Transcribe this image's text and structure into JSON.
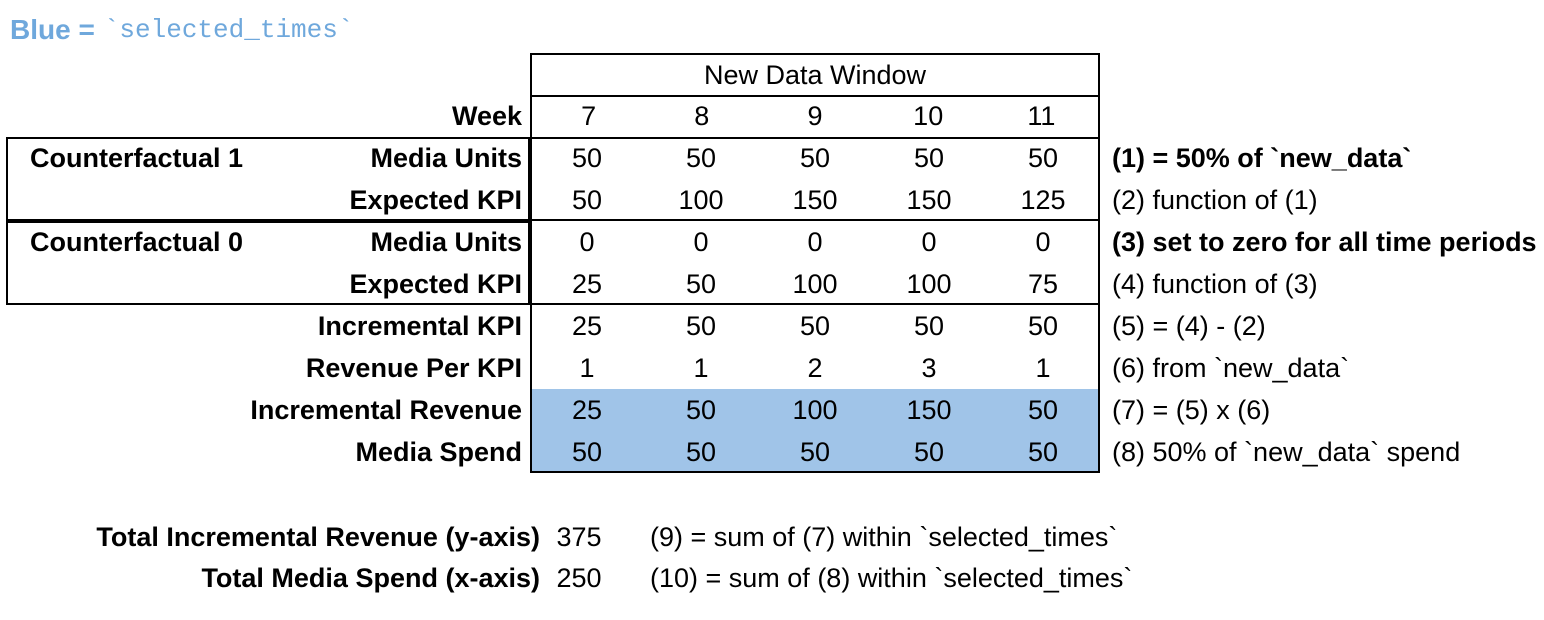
{
  "legend": {
    "label": "Blue =",
    "code": "`selected_times`"
  },
  "table": {
    "window_title": "New Data Window",
    "week_label": "Week",
    "weeks": [
      "7",
      "8",
      "9",
      "10",
      "11"
    ],
    "group1": "Counterfactual 1",
    "group2": "Counterfactual 0",
    "rows": [
      {
        "label": "Media Units",
        "values": [
          "50",
          "50",
          "50",
          "50",
          "50"
        ],
        "note": "(1) = 50% of `new_data`"
      },
      {
        "label": "Expected KPI",
        "values": [
          "50",
          "100",
          "150",
          "150",
          "125"
        ],
        "note": "(2) function of (1)"
      },
      {
        "label": "Media Units",
        "values": [
          "0",
          "0",
          "0",
          "0",
          "0"
        ],
        "note": "(3) set to zero for all time periods"
      },
      {
        "label": "Expected KPI",
        "values": [
          "25",
          "50",
          "100",
          "100",
          "75"
        ],
        "note": "(4) function of (3)"
      },
      {
        "label": "Incremental KPI",
        "values": [
          "25",
          "50",
          "50",
          "50",
          "50"
        ],
        "note": "(5) = (4) - (2)"
      },
      {
        "label": "Revenue Per KPI",
        "values": [
          "1",
          "1",
          "2",
          "3",
          "1"
        ],
        "note": "(6) from `new_data`"
      },
      {
        "label": "Incremental Revenue",
        "values": [
          "25",
          "50",
          "100",
          "150",
          "50"
        ],
        "note": "(7) = (5) x (6)"
      },
      {
        "label": "Media Spend",
        "values": [
          "50",
          "50",
          "50",
          "50",
          "50"
        ],
        "note": "(8) 50% of `new_data` spend"
      }
    ]
  },
  "summary": {
    "rows": [
      {
        "label": "Total Incremental Revenue (y-axis)",
        "value": "375",
        "note": "(9) = sum of (7) within `selected_times`"
      },
      {
        "label": "Total Media Spend (x-axis)",
        "value": "250",
        "note": "(10) = sum of (8) within `selected_times`"
      }
    ]
  },
  "colors": {
    "highlight": "#A0C4E8",
    "legend_blue": "#6FA8DC",
    "border": "#000000"
  },
  "chart_data": {
    "type": "table",
    "title": "New Data Window",
    "categories": [
      7,
      8,
      9,
      10,
      11
    ],
    "series": [
      {
        "name": "Counterfactual 1 Media Units",
        "values": [
          50,
          50,
          50,
          50,
          50
        ]
      },
      {
        "name": "Counterfactual 1 Expected KPI",
        "values": [
          50,
          100,
          150,
          150,
          125
        ]
      },
      {
        "name": "Counterfactual 0 Media Units",
        "values": [
          0,
          0,
          0,
          0,
          0
        ]
      },
      {
        "name": "Counterfactual 0 Expected KPI",
        "values": [
          25,
          50,
          100,
          100,
          75
        ]
      },
      {
        "name": "Incremental KPI",
        "values": [
          25,
          50,
          50,
          50,
          50
        ]
      },
      {
        "name": "Revenue Per KPI",
        "values": [
          1,
          1,
          2,
          3,
          1
        ]
      },
      {
        "name": "Incremental Revenue",
        "values": [
          25,
          50,
          100,
          150,
          50
        ],
        "highlighted": true
      },
      {
        "name": "Media Spend",
        "values": [
          50,
          50,
          50,
          50,
          50
        ],
        "highlighted": true
      }
    ],
    "totals": [
      {
        "name": "Total Incremental Revenue (y-axis)",
        "value": 375
      },
      {
        "name": "Total Media Spend (x-axis)",
        "value": 250
      }
    ]
  }
}
